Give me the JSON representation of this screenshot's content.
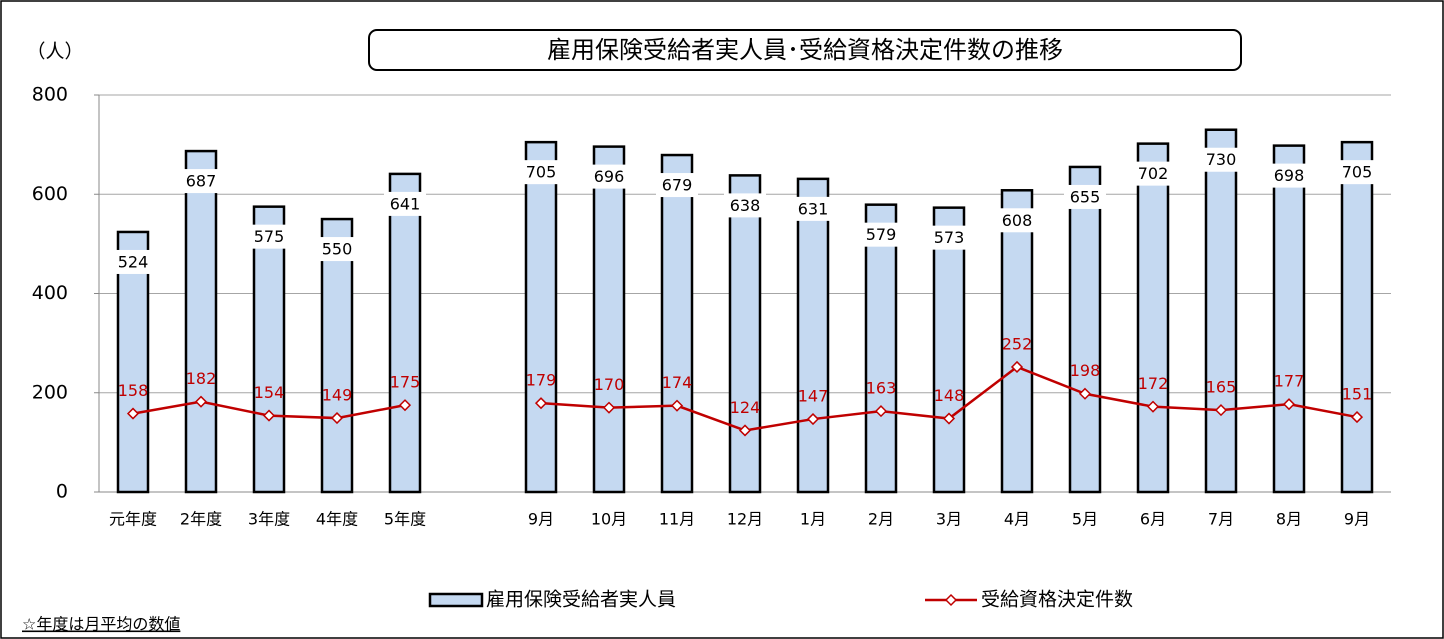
{
  "chart_data": {
    "type": "combo",
    "title": "雇用保険受給者実人員･受給資格決定件数の推移",
    "y_axis_label": "（人）",
    "note": "☆年度は月平均の数値",
    "categories": [
      "元年度",
      "2年度",
      "3年度",
      "4年度",
      "5年度",
      null,
      "9月",
      "10月",
      "11月",
      "12月",
      "1月",
      "2月",
      "3月",
      "4月",
      "5月",
      "6月",
      "7月",
      "8月",
      "9月"
    ],
    "series": [
      {
        "name": "雇用保険受給者実人員",
        "type": "bar",
        "color": "#c5d9f1",
        "values": [
          524,
          687,
          575,
          550,
          641,
          null,
          705,
          696,
          679,
          638,
          631,
          579,
          573,
          608,
          655,
          702,
          730,
          698,
          705
        ]
      },
      {
        "name": "受給資格決定件数",
        "type": "line",
        "color": "#c00000",
        "values": [
          158,
          182,
          154,
          149,
          175,
          null,
          179,
          170,
          174,
          124,
          147,
          163,
          148,
          252,
          198,
          172,
          165,
          177,
          151
        ]
      }
    ],
    "ylim": [
      0,
      800
    ],
    "yticks": [
      0,
      200,
      400,
      600,
      800
    ],
    "grid": true,
    "legend": "bottom"
  }
}
